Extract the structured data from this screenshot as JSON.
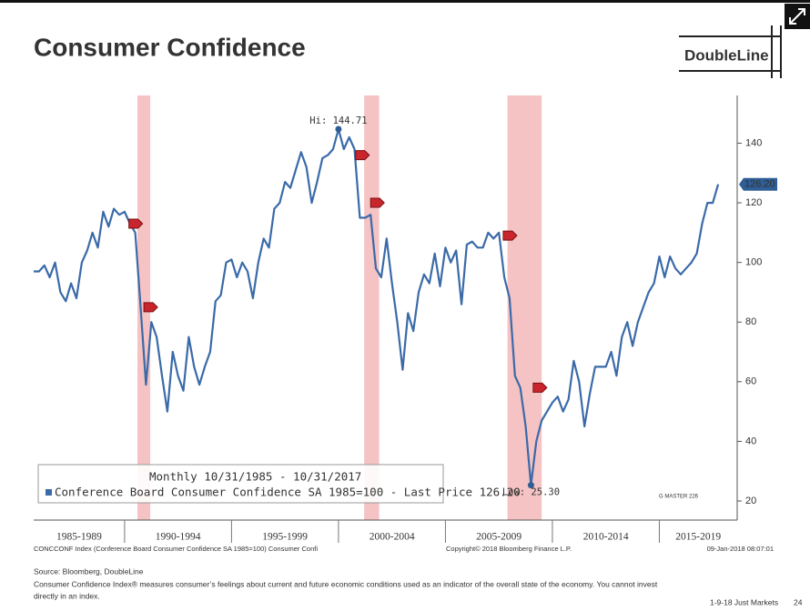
{
  "header": {
    "title": "Consumer Confidence",
    "logo": "DoubleLine"
  },
  "chart_data": {
    "type": "line",
    "legend": {
      "title": "Monthly 10/31/1985 - 10/31/2017",
      "entry": "Conference Board Consumer Confidence SA 1985=100 - Last Price 126.20"
    },
    "x": [
      1985.75,
      1986,
      1986.25,
      1986.5,
      1986.75,
      1987,
      1987.25,
      1987.5,
      1987.75,
      1988,
      1988.25,
      1988.5,
      1988.75,
      1989,
      1989.25,
      1989.5,
      1989.75,
      1990,
      1990.25,
      1990.5,
      1990.75,
      1991,
      1991.25,
      1991.5,
      1991.75,
      1992,
      1992.25,
      1992.5,
      1992.75,
      1993,
      1993.25,
      1993.5,
      1993.75,
      1994,
      1994.25,
      1994.5,
      1994.75,
      1995,
      1995.25,
      1995.5,
      1995.75,
      1996,
      1996.25,
      1996.5,
      1996.75,
      1997,
      1997.25,
      1997.5,
      1997.75,
      1998,
      1998.25,
      1998.5,
      1998.75,
      1999,
      1999.25,
      1999.5,
      1999.75,
      2000,
      2000.25,
      2000.5,
      2000.75,
      2001,
      2001.25,
      2001.5,
      2001.75,
      2002,
      2002.25,
      2002.5,
      2002.75,
      2003,
      2003.25,
      2003.5,
      2003.75,
      2004,
      2004.25,
      2004.5,
      2004.75,
      2005,
      2005.25,
      2005.5,
      2005.75,
      2006,
      2006.25,
      2006.5,
      2006.75,
      2007,
      2007.25,
      2007.5,
      2007.75,
      2008,
      2008.25,
      2008.5,
      2008.75,
      2009,
      2009.25,
      2009.5,
      2009.75,
      2010,
      2010.25,
      2010.5,
      2010.75,
      2011,
      2011.25,
      2011.5,
      2011.75,
      2012,
      2012.25,
      2012.5,
      2012.75,
      2013,
      2013.25,
      2013.5,
      2013.75,
      2014,
      2014.25,
      2014.5,
      2014.75,
      2015,
      2015.25,
      2015.5,
      2015.75,
      2016,
      2016.25,
      2016.5,
      2016.75,
      2017,
      2017.25,
      2017.5,
      2017.75
    ],
    "series": [
      {
        "name": "Conference Board Consumer Confidence SA 1985=100",
        "color": "#3a6aa8",
        "values": [
          97,
          97,
          99,
          95,
          100,
          90,
          87,
          93,
          88,
          100,
          104,
          110,
          105,
          117,
          112,
          118,
          116,
          117,
          113,
          110,
          85,
          59,
          80,
          75,
          62,
          50,
          70,
          62,
          57,
          75,
          65,
          59,
          65,
          70,
          87,
          89,
          100,
          101,
          95,
          100,
          97,
          88,
          100,
          108,
          105,
          118,
          120,
          127,
          125,
          131,
          137,
          132,
          120,
          127,
          135,
          136,
          138,
          144.71,
          138,
          142,
          138,
          115,
          115,
          116,
          98,
          95,
          108,
          93,
          80,
          64,
          83,
          77,
          90,
          96,
          93,
          103,
          92,
          105,
          100,
          104,
          86,
          106,
          107,
          105,
          105,
          110,
          108,
          110,
          95,
          88,
          62,
          58,
          45,
          25.3,
          40,
          47,
          50,
          53,
          55,
          50,
          54,
          67,
          60,
          45,
          56,
          65,
          65,
          65,
          70,
          62,
          75,
          80,
          72,
          80,
          85,
          90,
          93,
          102,
          95,
          102,
          98,
          96,
          98,
          100,
          103,
          113,
          120,
          120,
          126.2
        ],
        "value_labels": {
          "128": "126.20"
        }
      }
    ],
    "annotations": [
      {
        "text": "Hi: 144.71",
        "x": 2000,
        "y": 144.71
      },
      {
        "text": "Low: 25.30",
        "x": 2009,
        "y": 25.3
      }
    ],
    "shaded_ranges": [
      [
        1990.6,
        1991.2
      ],
      [
        2001.2,
        2001.9
      ],
      [
        2007.9,
        2009.5
      ]
    ],
    "markers": [
      {
        "x": 1990.5,
        "y": 113
      },
      {
        "x": 1991.2,
        "y": 85
      },
      {
        "x": 2001.1,
        "y": 136
      },
      {
        "x": 2001.8,
        "y": 120
      },
      {
        "x": 2008.0,
        "y": 109
      },
      {
        "x": 2009.4,
        "y": 58
      }
    ],
    "xlim": [
      1985.75,
      2018.64
    ],
    "ylim": [
      13.6,
      156
    ],
    "yticks": [
      20,
      40,
      60,
      80,
      100,
      120,
      140
    ],
    "xticks": [
      1990,
      1995,
      2000,
      2005,
      2010,
      2015
    ],
    "period_labels": [
      "1985-1989",
      "1990-1994",
      "1995-1999",
      "2000-2004",
      "2005-2009",
      "2010-2014",
      "2015-2019"
    ],
    "watermark": "G MASTER 226"
  },
  "terminal_footer": {
    "left": "CONCCONF Index (Conference Board Consumer Confidence SA 1985=100) Consumer Confi",
    "center": "Copyright© 2018 Bloomberg Finance L.P.",
    "right": "09-Jan-2018 08:07:01"
  },
  "source": {
    "line1": "Source: Bloomberg, DoubleLine",
    "line2": "Consumer Confidence Index® measures consumer’s feelings about current and future economic conditions used as an indicator of the overall state of the economy. You cannot invest",
    "line3": "directly in an index."
  },
  "slide_footer": {
    "label": "1-9-18 Just Markets",
    "page": "24"
  }
}
